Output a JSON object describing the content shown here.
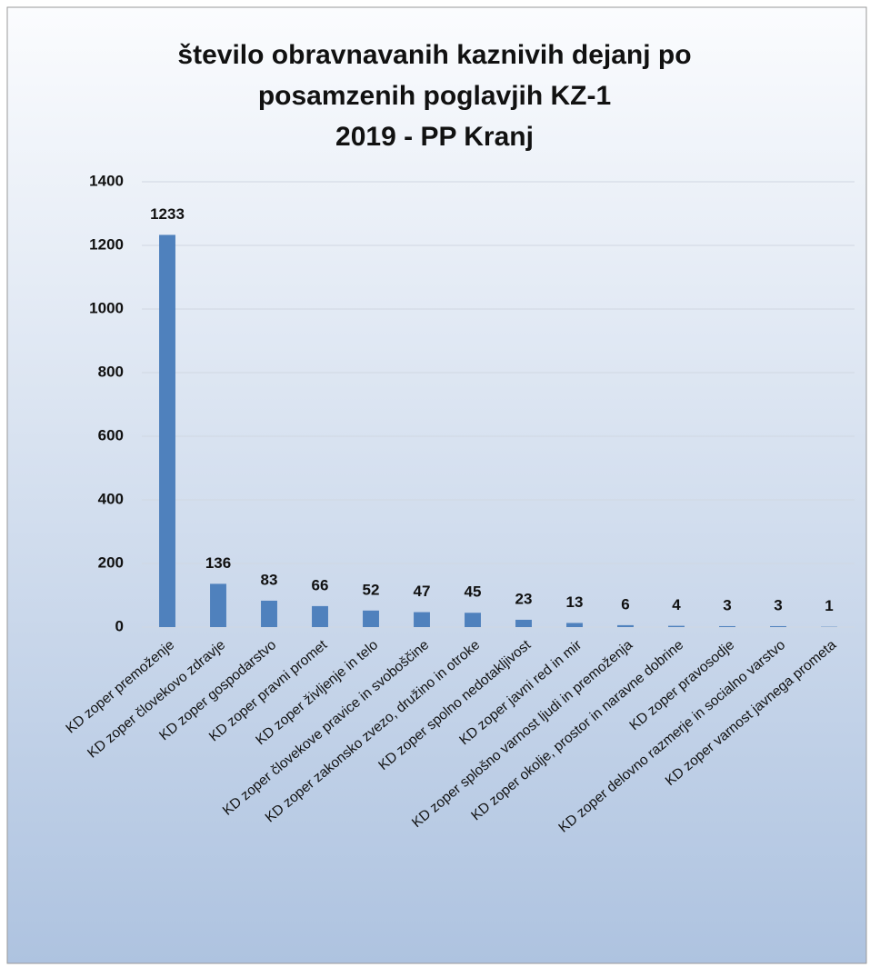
{
  "chart_data": {
    "type": "bar",
    "title": [
      "število obravnavanih kaznivih dejanj po",
      "posamzenih poglavjih KZ-1",
      "2019 - PP Kranj"
    ],
    "categories": [
      "KD zoper premoženje",
      "KD zoper človekovo zdravje",
      "KD zoper gospodarstvo",
      "KD zoper pravni promet",
      "KD zoper življenje in telo",
      "KD zoper človekove pravice in svoboščine",
      "KD zoper zakonsko zvezo, družino in otroke",
      "KD zoper spolno nedotakljivost",
      "KD zoper javni red in mir",
      "KD zoper splošno varnost ljudi in premoženja",
      "KD zoper okolje, prostor in naravne dobrine",
      "KD zoper pravosodje",
      "KD zoper delovno razmerje in socialno varstvo",
      "KD zoper varnost javnega prometa"
    ],
    "values": [
      1233,
      136,
      83,
      66,
      52,
      47,
      45,
      23,
      13,
      6,
      4,
      3,
      3,
      1
    ],
    "color": "#4f81bd",
    "ylim": [
      0,
      1400
    ],
    "yticks": [
      0,
      200,
      400,
      600,
      800,
      1000,
      1200,
      1400
    ],
    "grid": true
  }
}
